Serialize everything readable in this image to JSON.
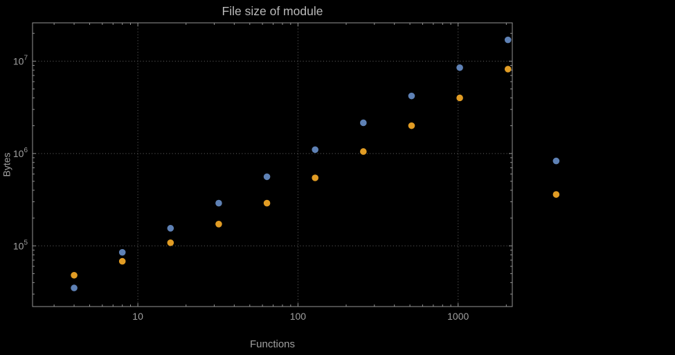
{
  "chart_data": {
    "type": "scatter",
    "title": "File size of module",
    "xlabel": "Functions",
    "ylabel": "Bytes",
    "x_scale": "log",
    "y_scale": "log",
    "grid": "dotted",
    "legend": "none",
    "x": [
      4,
      8,
      16,
      32,
      64,
      128,
      256,
      512,
      1024,
      2048,
      4096
    ],
    "series": [
      {
        "name": "series-1",
        "color": "#5E81B5",
        "values": [
          35000,
          85000,
          155000,
          290000,
          560000,
          1100000,
          2150000,
          4200000,
          8500000,
          17000000,
          830000
        ]
      },
      {
        "name": "series-2",
        "color": "#E19C24",
        "values": [
          48000,
          68000,
          108000,
          172000,
          290000,
          545000,
          1050000,
          2000000,
          4000000,
          8200000,
          360000
        ]
      }
    ],
    "x_ticks": [
      10,
      100,
      1000
    ],
    "x_tick_labels": [
      "10",
      "100",
      "1000"
    ],
    "y_ticks": [
      100000,
      1000000,
      10000000
    ],
    "y_tick_labels": [
      {
        "base": "10",
        "exp": "5"
      },
      {
        "base": "10",
        "exp": "6"
      },
      {
        "base": "10",
        "exp": "7"
      }
    ],
    "xlim": [
      2.2,
      2180
    ],
    "ylim": [
      22000,
      26000000
    ]
  },
  "colors": {
    "background": "#000000",
    "frame": "#969696",
    "grid": "#6a6a6a",
    "text": "#a0a0a0",
    "title": "#bababa"
  }
}
